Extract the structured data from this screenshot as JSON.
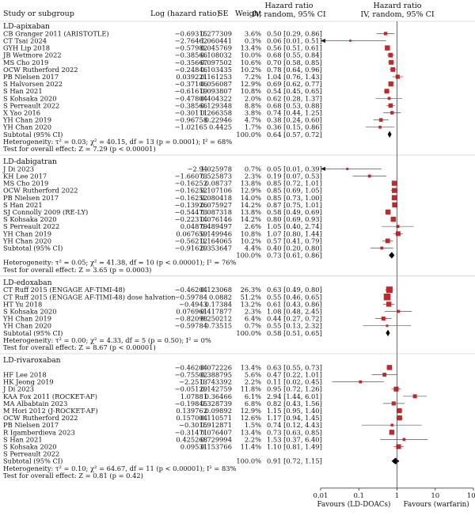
{
  "header": {
    "study": "Study or subgroup",
    "log_hr": "Log (hazard ratio)",
    "se": "SE",
    "weight": "Weight",
    "hr_left_1": "Hazard ratio",
    "hr_left_2": "IV, random, 95% CI",
    "hr_right_1": "Hazard ratio",
    "hr_right_2": "IV, random, 95% CI"
  },
  "axis": {
    "ticks": [
      "0.01",
      "0.1",
      "1",
      "10",
      "100"
    ],
    "tick_values": [
      0.01,
      0.1,
      1,
      10,
      100
    ],
    "favours_left": "Favours (LD-DOACs)",
    "favours_right": "Favours (warfarin)"
  },
  "colors": {
    "marker": "#c0282d",
    "line": "#555555",
    "diamond": "#000000"
  },
  "chart_data": {
    "type": "forest",
    "scale": "log",
    "xlim": [
      0.01,
      100
    ],
    "groups": [
      {
        "title": "LD-apixaban",
        "studies": [
          {
            "name": "CB Granger 2011 (ARISTOTLE)",
            "loghr": "−0.69315",
            "se": "0.277309",
            "weight": "3.6%",
            "ci": "0.50 [0.29, 0.86]",
            "hr": 0.5,
            "lo": 0.29,
            "hi": 0.86,
            "w": 3.6
          },
          {
            "name": "CT Tsai 2024",
            "loghr": "−2.76462",
            "se": "1.060441",
            "weight": "0.3%",
            "ci": "0.06 [0.01, 0.51]",
            "hr": 0.06,
            "lo": 0.01,
            "hi": 0.51,
            "w": 0.3
          },
          {
            "name": "GYH Lip 2018",
            "loghr": "−0.57982",
            "se": "0.045769",
            "weight": "13.4%",
            "ci": "0.56 [0.51, 0.61]",
            "hr": 0.56,
            "lo": 0.51,
            "hi": 0.61,
            "w": 13.4
          },
          {
            "name": "JB Wetmore 2022",
            "loghr": "−0.38566",
            "se": "0.108032",
            "weight": "10.0%",
            "ci": "0.68 [0.55, 0.84]",
            "hr": 0.68,
            "lo": 0.55,
            "hi": 0.84,
            "w": 10.0
          },
          {
            "name": "MS Cho 2019",
            "loghr": "−0.35667",
            "se": "0.097502",
            "weight": "10.6%",
            "ci": "0.70 [0.58, 0.85]",
            "hr": 0.7,
            "lo": 0.58,
            "hi": 0.85,
            "w": 10.6
          },
          {
            "name": "OCW Rutherford 2022",
            "loghr": "−0.24846",
            "se": "0.103435",
            "weight": "10.2%",
            "ci": "0.78 [0.64, 0.96]",
            "hr": 0.78,
            "lo": 0.64,
            "hi": 0.96,
            "w": 10.2
          },
          {
            "name": "PB Nielsen 2017",
            "loghr": "0.039221",
            "se": "0.161253",
            "weight": "7.2%",
            "ci": "1.04 [0.76, 1.43]",
            "hr": 1.04,
            "lo": 0.76,
            "hi": 1.43,
            "w": 7.2
          },
          {
            "name": "S Halvorsen 2022",
            "loghr": "−0.37106",
            "se": "0.056087",
            "weight": "12.9%",
            "ci": "0.69 [0.62, 0.77]",
            "hr": 0.69,
            "lo": 0.62,
            "hi": 0.77,
            "w": 12.9
          },
          {
            "name": "S Han 2021",
            "loghr": "−0.61619",
            "se": "0.093807",
            "weight": "10.8%",
            "ci": "0.54 [0.45, 0.65]",
            "hr": 0.54,
            "lo": 0.45,
            "hi": 0.65,
            "w": 10.8
          },
          {
            "name": "S Kohsaka 2020",
            "loghr": "−0.47804",
            "se": "0.404322",
            "weight": "2.0%",
            "ci": "0.62 [0.28, 1.37]",
            "hr": 0.62,
            "lo": 0.28,
            "hi": 1.37,
            "w": 2.0
          },
          {
            "name": "S Perreault 2022",
            "loghr": "−0.38566",
            "se": "0.129348",
            "weight": "8.8%",
            "ci": "0.68 [0.53, 0.88]",
            "hr": 0.68,
            "lo": 0.53,
            "hi": 0.88,
            "w": 8.8
          },
          {
            "name": "X Yao 2016",
            "loghr": "−0.30111",
            "se": "0.266358",
            "weight": "3.8%",
            "ci": "0.74 [0.44, 1.25]",
            "hr": 0.74,
            "lo": 0.44,
            "hi": 1.25,
            "w": 3.8
          },
          {
            "name": "YH Chan 2019",
            "loghr": "−0.96758",
            "se": "0.22946",
            "weight": "4.7%",
            "ci": "0.38 [0.24, 0.60]",
            "hr": 0.38,
            "lo": 0.24,
            "hi": 0.6,
            "w": 4.7
          },
          {
            "name": "YH Chan 2020",
            "loghr": "−1.02165",
            "se": "0.4425",
            "weight": "1.7%",
            "ci": "0.36 [0.15, 0.86]",
            "hr": 0.36,
            "lo": 0.15,
            "hi": 0.86,
            "w": 1.7
          }
        ],
        "subtotals": [
          {
            "label": "Subtotal (95% CI)",
            "loghr": "",
            "se": "",
            "weight": "100.0%",
            "ci": "0.64 [0.57, 0.72]",
            "hr": 0.64,
            "lo": 0.57,
            "hi": 0.72
          }
        ],
        "heterogeneity": "Heterogeneity: τ² = 0.03; χ² = 40.15, df = 13 (p = 0.0001); I² = 68%",
        "overall": "Test for overall effect: Z = 7.29 (p < 0.00001)"
      },
      {
        "title": "LD-dabigatran",
        "studies": [
          {
            "name": "J Di 2023",
            "loghr": "−2.94",
            "se": "1.025978",
            "weight": "0.7%",
            "ci": "0.05 [0.01, 0.39]",
            "hr": 0.05,
            "lo": 0.01,
            "hi": 0.39,
            "w": 0.7
          },
          {
            "name": "KH Lee 2017",
            "loghr": "−1.66073",
            "se": "0.525873",
            "weight": "2.3%",
            "ci": "0.19 [0.07, 0.53]",
            "hr": 0.19,
            "lo": 0.07,
            "hi": 0.53,
            "w": 2.3
          },
          {
            "name": "MS Cho 2019",
            "loghr": "−0.16252",
            "se": "0.08737",
            "weight": "13.8%",
            "ci": "0.85 [0.72, 1.01]",
            "hr": 0.85,
            "lo": 0.72,
            "hi": 1.01,
            "w": 13.8
          },
          {
            "name": "OCW Rutherford 2022",
            "loghr": "−0.16252",
            "se": "0.107106",
            "weight": "12.9%",
            "ci": "0.85 [0.69, 1.05]",
            "hr": 0.85,
            "lo": 0.69,
            "hi": 1.05,
            "w": 12.9
          },
          {
            "name": "PB Nielsen 2017",
            "loghr": "−0.16252",
            "se": "0.080418",
            "weight": "14.0%",
            "ci": "0.85 [0.73, 1.00]",
            "hr": 0.85,
            "lo": 0.73,
            "hi": 1.0,
            "w": 14.0
          },
          {
            "name": "S Han 2021",
            "loghr": "−0.13926",
            "se": "0.075927",
            "weight": "14.2%",
            "ci": "0.87 [0.75, 1.01]",
            "hr": 0.87,
            "lo": 0.75,
            "hi": 1.01,
            "w": 14.2
          },
          {
            "name": "SJ Connolly 2009 (RE-LY)",
            "loghr": "−0.54473",
            "se": "0.087318",
            "weight": "13.8%",
            "ci": "0.58 [0.49, 0.69]",
            "hr": 0.58,
            "lo": 0.49,
            "hi": 0.69,
            "w": 13.8
          },
          {
            "name": "S Kohsaka 2020",
            "loghr": "−0.22314",
            "se": "0.076146",
            "weight": "14.2%",
            "ci": "0.80 [0.69, 0.93]",
            "hr": 0.8,
            "lo": 0.69,
            "hi": 0.93,
            "w": 14.2
          },
          {
            "name": "S Perreault 2022",
            "loghr": "0.04879",
            "se": "0.489497",
            "weight": "2.6%",
            "ci": "1.05 [0.40, 2.74]",
            "hr": 1.05,
            "lo": 0.4,
            "hi": 2.74,
            "w": 2.6
          },
          {
            "name": "YH Chan 2019",
            "loghr": "0.067659",
            "se": "0.149946",
            "weight": "10.8%",
            "ci": "1.07 [0.80, 1.44]",
            "hr": 1.07,
            "lo": 0.8,
            "hi": 1.44,
            "w": 10.8
          },
          {
            "name": "YH Chan 2020",
            "loghr": "−0.56212",
            "se": "0.164065",
            "weight": "10.2%",
            "ci": "0.57 [0.41, 0.79]",
            "hr": 0.57,
            "lo": 0.41,
            "hi": 0.79,
            "w": 10.2
          }
        ],
        "subtotals": [
          {
            "label": "Subtotal (95% CI)",
            "loghr": "−0.91629",
            "se": "0.353647",
            "weight": "4.4%",
            "ci": "0.40 [0.20, 0.80]",
            "hr": 0.4,
            "lo": 0.2,
            "hi": 0.8
          },
          {
            "label": "",
            "loghr": "",
            "se": "",
            "weight": "100.0%",
            "ci": "0.73 [0.61, 0.86]",
            "hr": 0.73,
            "lo": 0.61,
            "hi": 0.86
          }
        ],
        "heterogeneity": "Heterogeneity: τ² = 0.05; χ² = 41.38, df = 10 (p < 0.00001); I² = 76%",
        "overall": "Test for overall effect: Z = 3.65 (p = 0.0003)"
      },
      {
        "title": "LD-edoxaban",
        "studies": [
          {
            "name": "CT Ruff 2015 (ENGAGE AF-TIMI-48)",
            "loghr": "−0.46204",
            "se": "0.123068",
            "weight": "26.3%",
            "ci": "0.63 [0.49, 0.80]",
            "hr": 0.63,
            "lo": 0.49,
            "hi": 0.8,
            "w": 26.3
          },
          {
            "name": "CT Ruff 2015 (ENGAGE AF-TIMI-48) dose halvation",
            "loghr": "−0.59784",
            "se": "0.0882",
            "weight": "51.2%",
            "ci": "0.55 [0.46, 0.65]",
            "hr": 0.55,
            "lo": 0.46,
            "hi": 0.65,
            "w": 51.2
          },
          {
            "name": "HT Yu 2018",
            "loghr": "−0.4943",
            "se": "0.17384",
            "weight": "13.2%",
            "ci": "0.61 [0.43, 0.86]",
            "hr": 0.61,
            "lo": 0.43,
            "hi": 0.86,
            "w": 13.2
          },
          {
            "name": "S Kohsaka 2020",
            "loghr": "0.076961",
            "se": "0.417877",
            "weight": "2.3%",
            "ci": "1.08 [0.48, 2.45]",
            "hr": 1.08,
            "lo": 0.48,
            "hi": 2.45,
            "w": 2.3
          },
          {
            "name": "YH Chan 2019",
            "loghr": "−0.82098",
            "se": "0.250212",
            "weight": "6.4%",
            "ci": "0.44 [0.27, 0.72]",
            "hr": 0.44,
            "lo": 0.27,
            "hi": 0.72,
            "w": 6.4
          },
          {
            "name": "YH Chan 2020",
            "loghr": "−0.59784",
            "se": "0.73515",
            "weight": "0.7%",
            "ci": "0.55 [0.13, 2.32]",
            "hr": 0.55,
            "lo": 0.13,
            "hi": 2.32,
            "w": 0.7
          }
        ],
        "subtotals": [
          {
            "label": "Subtotal (95% CI)",
            "loghr": "",
            "se": "",
            "weight": "100.0%",
            "ci": "0.58 [0.51, 0.65]",
            "hr": 0.58,
            "lo": 0.51,
            "hi": 0.65
          }
        ],
        "heterogeneity": "Heterogeneity: τ² = 0.00; χ² = 4.33, df = 5 (p = 0.50); I² = 0%",
        "overall": "Test for overall effect: Z = 8.67 (p < 0.00001)"
      },
      {
        "title": "LD-rivaroxaban",
        "studies": [
          {
            "name": "",
            "loghr": "−0.46204",
            "se": "0.072226",
            "weight": "13.4%",
            "ci": "0.63 [0.55, 0.73]",
            "hr": 0.63,
            "lo": 0.55,
            "hi": 0.73,
            "w": 13.4
          },
          {
            "name": "HF Lee 2018",
            "loghr": "−0.75502",
            "se": "0.388795",
            "weight": "5.6%",
            "ci": "0.47 [0.22, 1.01]",
            "hr": 0.47,
            "lo": 0.22,
            "hi": 1.01,
            "w": 5.6
          },
          {
            "name": "HK Jeong 2019",
            "loghr": "−2.2513",
            "se": "0.743392",
            "weight": "2.2%",
            "ci": "0.11 [0.02, 0.45]",
            "hr": 0.11,
            "lo": 0.02,
            "hi": 0.45,
            "w": 2.2
          },
          {
            "name": "J Di 2023",
            "loghr": "−0.05129",
            "se": "0.142759",
            "weight": "11.8%",
            "ci": "0.95 [0.72, 1.26]",
            "hr": 0.95,
            "lo": 0.72,
            "hi": 1.26,
            "w": 11.8
          },
          {
            "name": "KAA Fox 2011 (ROCKET-AF)",
            "loghr": "1.07881",
            "se": "0.36466",
            "weight": "6.1%",
            "ci": "2.94 [1.44, 6.01]",
            "hr": 2.94,
            "lo": 1.44,
            "hi": 6.01,
            "w": 6.1
          },
          {
            "name": "MA Albabtain 2023",
            "loghr": "−0.19845",
            "se": "0.328739",
            "weight": "6.8%",
            "ci": "0.82 [0.43, 1.56]",
            "hr": 0.82,
            "lo": 0.43,
            "hi": 1.56,
            "w": 6.8
          },
          {
            "name": "M Hori 2012 (J-ROCKET-AF)",
            "loghr": "0.139762",
            "se": "0.09892",
            "weight": "12.9%",
            "ci": "1.15 [0.95, 1.40]",
            "hr": 1.15,
            "lo": 0.95,
            "hi": 1.4,
            "w": 12.9
          },
          {
            "name": "OCW Rutherford 2022",
            "loghr": "0.157004",
            "se": "0.110571",
            "weight": "12.6%",
            "ci": "1.17 [0.94, 1.45]",
            "hr": 1.17,
            "lo": 0.94,
            "hi": 1.45,
            "w": 12.6
          },
          {
            "name": "PB Nielsen 2017",
            "loghr": "−0.3015",
            "se": "0.912871",
            "weight": "1.5%",
            "ci": "0.74 [0.12, 4.43]",
            "hr": 0.74,
            "lo": 0.12,
            "hi": 4.43,
            "w": 1.5
          },
          {
            "name": "R Igamberdieva 2023",
            "loghr": "−0.31471",
            "se": "0.076407",
            "weight": "13.4%",
            "ci": "0.73 [0.63, 0.85]",
            "hr": 0.73,
            "lo": 0.63,
            "hi": 0.85,
            "w": 13.4
          },
          {
            "name": "S Han 2021",
            "loghr": "0.425268",
            "se": "0.729994",
            "weight": "2.2%",
            "ci": "1.53 [0.37, 6.40]",
            "hr": 1.53,
            "lo": 0.37,
            "hi": 6.4,
            "w": 2.2
          },
          {
            "name": "S Kohsaka 2020",
            "loghr": "0.09531",
            "se": "0.153766",
            "weight": "11.4%",
            "ci": "1.10 [0.81, 1.49]",
            "hr": 1.1,
            "lo": 0.81,
            "hi": 1.49,
            "w": 11.4
          },
          {
            "name": "S Perreault 2022",
            "loghr": "",
            "se": "",
            "weight": "",
            "ci": "",
            "hr": null,
            "lo": null,
            "hi": null,
            "w": 0
          }
        ],
        "subtotals": [
          {
            "label": "Subtotal (95% CI)",
            "loghr": "",
            "se": "",
            "weight": "100.0%",
            "ci": "0.91 [0.72, 1.15]",
            "hr": 0.91,
            "lo": 0.72,
            "hi": 1.15
          }
        ],
        "heterogeneity": "Heterogeneity: τ² = 0.10; χ² = 64.67, df = 11 (p < 0.00001); I² = 83%",
        "overall": "Test for overall effect: Z = 0.81 (p = 0.42)"
      }
    ]
  }
}
